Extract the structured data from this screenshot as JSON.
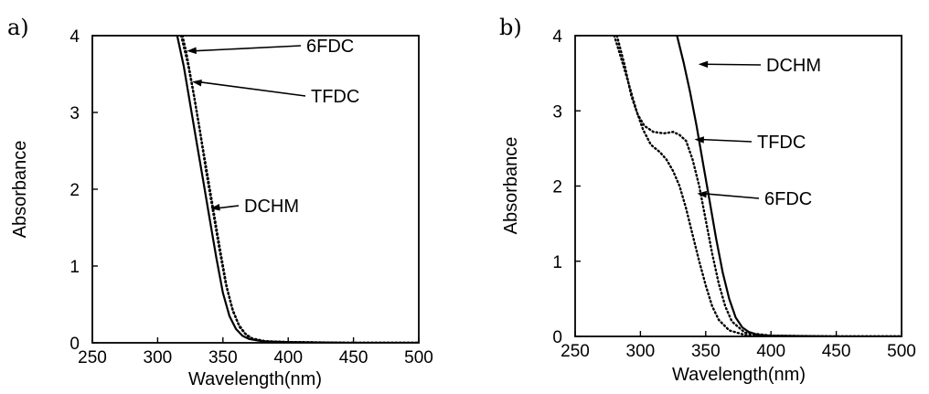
{
  "chart_data": [
    {
      "panel_label": "a)",
      "type": "line",
      "xlabel": "Wavelength(nm)",
      "ylabel": "Absorbance",
      "xlim": [
        250,
        500
      ],
      "ylim": [
        0,
        4
      ],
      "xticks": [
        "250",
        "300",
        "350",
        "400",
        "450",
        "500"
      ],
      "yticks": [
        "0",
        "1",
        "2",
        "3",
        "4"
      ],
      "series": [
        {
          "name": "DCHM",
          "style": "solid",
          "x": [
            315,
            320,
            325,
            330,
            335,
            340,
            345,
            350,
            355,
            360,
            365,
            370,
            380,
            400,
            450,
            500
          ],
          "y": [
            4.0,
            3.6,
            3.1,
            2.6,
            2.1,
            1.6,
            1.1,
            0.65,
            0.35,
            0.18,
            0.09,
            0.05,
            0.02,
            0.01,
            0.0,
            0.0
          ]
        },
        {
          "name": "TFDC",
          "style": "dotted",
          "x": [
            318,
            323,
            328,
            333,
            338,
            343,
            348,
            353,
            358,
            363,
            368,
            373,
            383,
            400,
            450,
            500
          ],
          "y": [
            4.0,
            3.65,
            3.2,
            2.7,
            2.2,
            1.7,
            1.2,
            0.72,
            0.4,
            0.2,
            0.1,
            0.05,
            0.02,
            0.01,
            0.0,
            0.0
          ]
        },
        {
          "name": "6FDC",
          "style": "dotted",
          "x": [
            319,
            322,
            327,
            332,
            337,
            342,
            347,
            352,
            357,
            362,
            367,
            372,
            382,
            400,
            450,
            500
          ],
          "y": [
            4.0,
            3.78,
            3.3,
            2.8,
            2.25,
            1.75,
            1.25,
            0.78,
            0.45,
            0.24,
            0.12,
            0.06,
            0.02,
            0.01,
            0.0,
            0.0
          ]
        }
      ],
      "annotations": [
        {
          "text": "6FDC",
          "target_x": 321,
          "target_y": 3.8
        },
        {
          "text": "TFDC",
          "target_x": 325,
          "target_y": 3.4
        },
        {
          "text": "DCHM",
          "target_x": 339,
          "target_y": 1.75
        }
      ]
    },
    {
      "panel_label": "b)",
      "type": "line",
      "xlabel": "Wavelength(nm)",
      "ylabel": "Absorbance",
      "xlim": [
        250,
        500
      ],
      "ylim": [
        0,
        4
      ],
      "xticks": [
        "250",
        "300",
        "350",
        "400",
        "450",
        "500"
      ],
      "yticks": [
        "0",
        "1",
        "2",
        "3",
        "4"
      ],
      "series": [
        {
          "name": "DCHM",
          "style": "solid",
          "x": [
            328,
            333,
            338,
            343,
            348,
            353,
            358,
            363,
            368,
            373,
            378,
            383,
            390,
            400,
            450,
            500
          ],
          "y": [
            4.0,
            3.65,
            3.25,
            2.8,
            2.3,
            1.8,
            1.3,
            0.85,
            0.5,
            0.25,
            0.12,
            0.06,
            0.02,
            0.01,
            0.0,
            0.0
          ]
        },
        {
          "name": "TFDC",
          "style": "dotted",
          "x": [
            282,
            288,
            293,
            298,
            303,
            310,
            318,
            325,
            330,
            335,
            340,
            345,
            350,
            355,
            360,
            365,
            370,
            380,
            400,
            450,
            500
          ],
          "y": [
            4.0,
            3.6,
            3.2,
            2.95,
            2.8,
            2.72,
            2.7,
            2.72,
            2.68,
            2.6,
            2.35,
            2.0,
            1.55,
            1.1,
            0.7,
            0.4,
            0.2,
            0.05,
            0.01,
            0.0,
            0.0
          ]
        },
        {
          "name": "6FDC",
          "style": "dotted",
          "x": [
            280,
            287,
            292,
            297,
            302,
            308,
            315,
            320,
            325,
            330,
            335,
            340,
            345,
            350,
            355,
            360,
            368,
            380,
            400,
            450,
            500
          ],
          "y": [
            4.0,
            3.6,
            3.3,
            3.0,
            2.75,
            2.55,
            2.45,
            2.35,
            2.2,
            2.0,
            1.7,
            1.35,
            1.0,
            0.68,
            0.4,
            0.22,
            0.08,
            0.02,
            0.0,
            0.0,
            0.0
          ]
        }
      ],
      "annotations": [
        {
          "text": "DCHM",
          "target_x": 343,
          "target_y": 3.62
        },
        {
          "text": "TFDC",
          "target_x": 340,
          "target_y": 2.62
        },
        {
          "text": "6FDC",
          "target_x": 342,
          "target_y": 1.9
        }
      ]
    }
  ]
}
